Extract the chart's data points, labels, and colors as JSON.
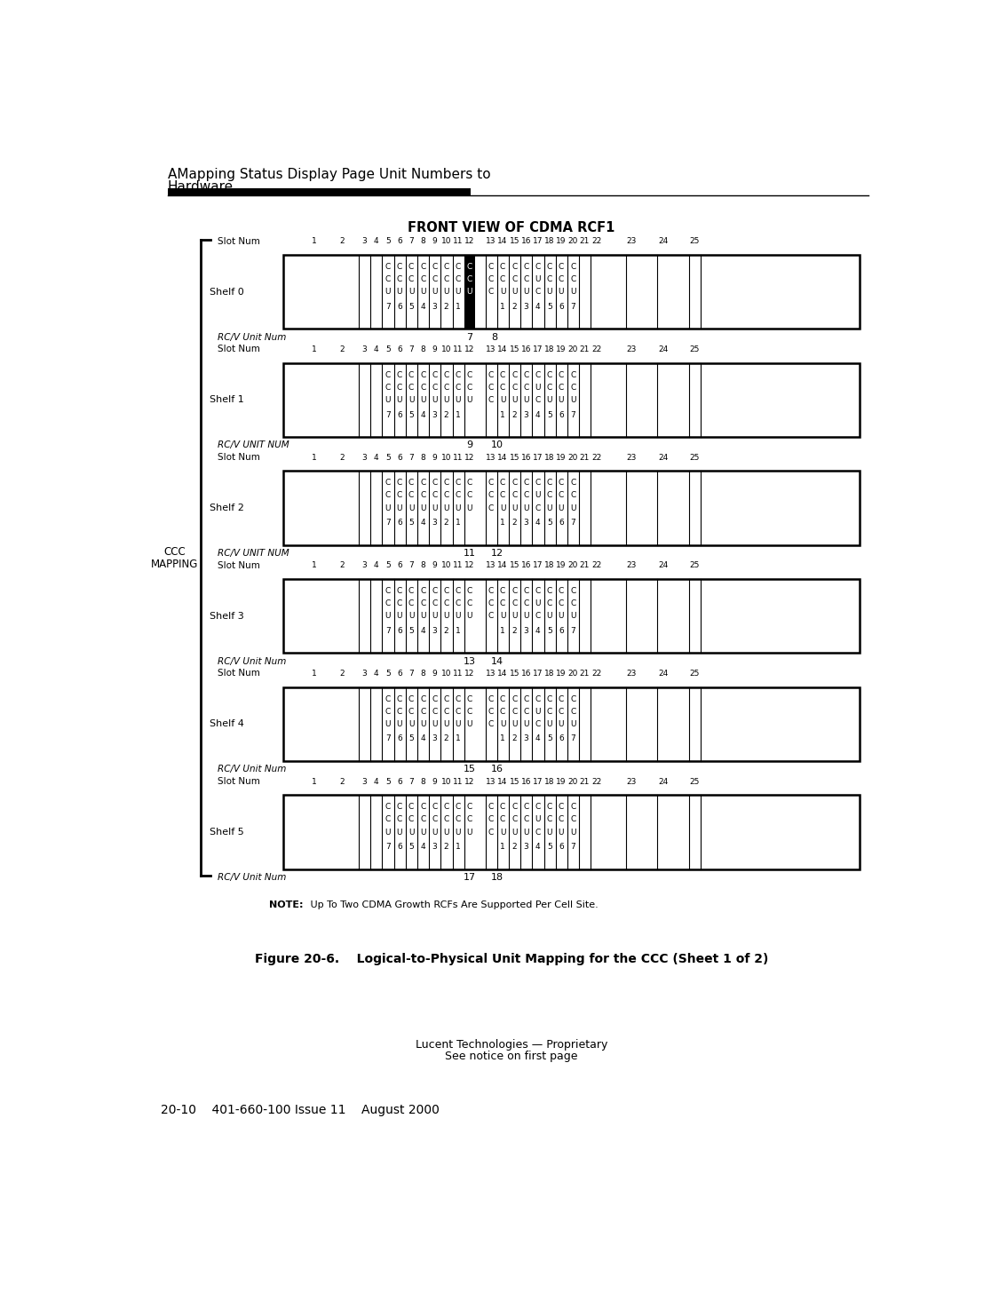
{
  "page_title_line1": "AMapping Status Display Page Unit Numbers to",
  "page_title_line2": "Hardware",
  "main_title": "FRONT VIEW OF CDMA RCF1",
  "footer_line1": "Lucent Technologies — Proprietary",
  "footer_line2": "See notice on first page",
  "footer_bottom": "20-10    401-660-100 Issue 11    August 2000",
  "figure_caption": "Figure 20-6.    Logical-to-Physical Unit Mapping for the CCC (Sheet 1 of 2)",
  "note_text": "NOTE:   Up To Two CDMA Growth RCFs Are Supported Per Cell Site.",
  "left_label_line1": "CCC",
  "left_label_line2": "MAPPING",
  "shelves": [
    {
      "name": "Shelf 0",
      "rcv_label": "RC/V Unit Num",
      "rcv_num1": "7",
      "rcv_num2": "8"
    },
    {
      "name": "Shelf 1",
      "rcv_label": "RC/V UNIT NUM",
      "rcv_num1": "9",
      "rcv_num2": "10"
    },
    {
      "name": "Shelf 2",
      "rcv_label": "RC/V UNIT NUM",
      "rcv_num1": "11",
      "rcv_num2": "12"
    },
    {
      "name": "Shelf 3",
      "rcv_label": "RC/V Unit Num",
      "rcv_num1": "13",
      "rcv_num2": "14"
    },
    {
      "name": "Shelf 4",
      "rcv_label": "RC/V Unit Num",
      "rcv_num1": "15",
      "rcv_num2": "16"
    },
    {
      "name": "Shelf 5",
      "rcv_label": "RC/V Unit Num",
      "rcv_num1": "17",
      "rcv_num2": "18"
    }
  ],
  "bg_color": "#ffffff"
}
